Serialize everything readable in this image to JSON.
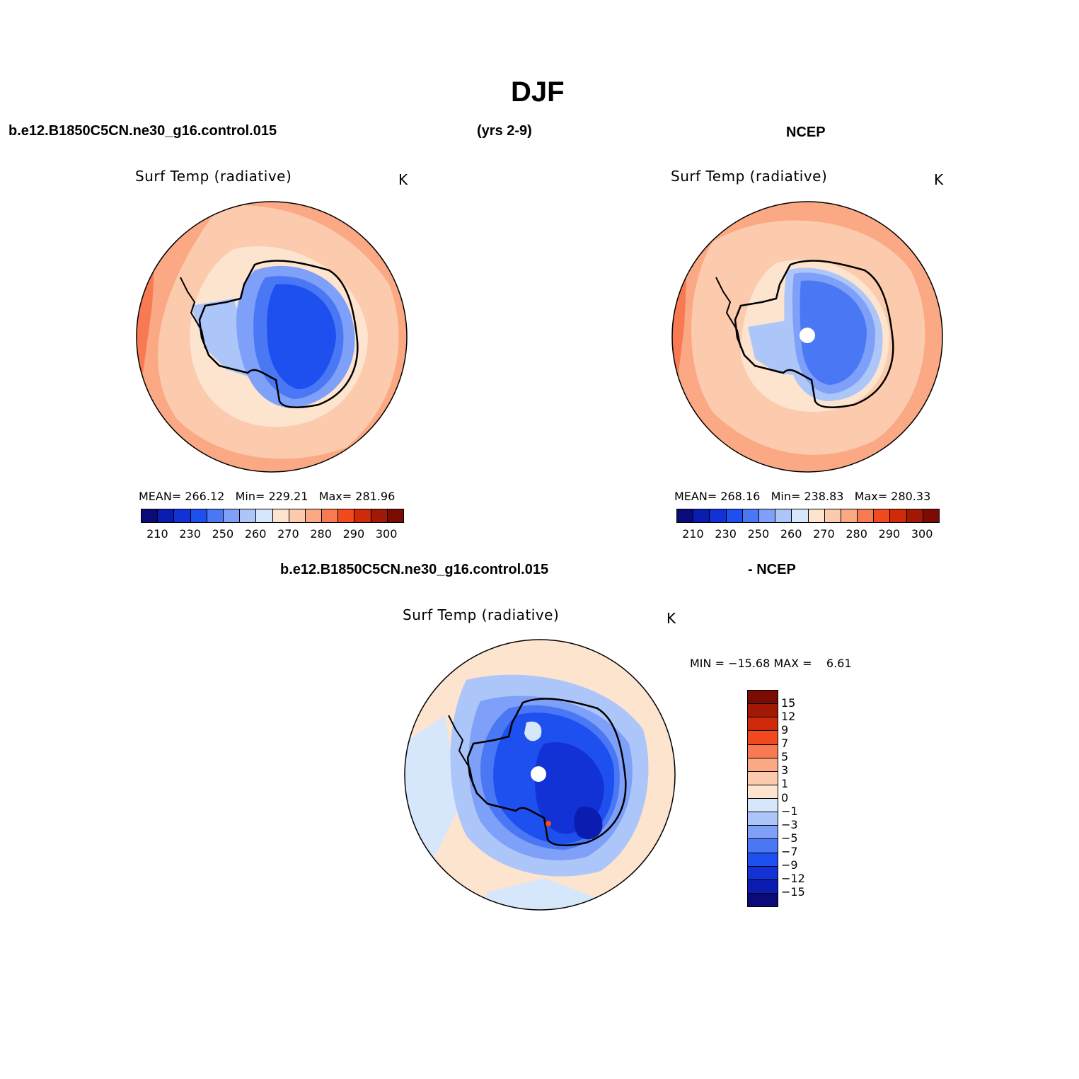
{
  "header": {
    "title": "DJF",
    "left_label": "b.e12.B1850C5CN.ne30_g16.control.015",
    "center_label": "(yrs 2-9)",
    "right_label": "NCEP",
    "diff_left_label": "b.e12.B1850C5CN.ne30_g16.control.015",
    "diff_right_label": "- NCEP"
  },
  "panels": {
    "model": {
      "title": "Surf Temp (radiative)",
      "units": "K",
      "stats": "MEAN= 266.12   Min= 229.21   Max= 281.96"
    },
    "obs": {
      "title": "Surf Temp (radiative)",
      "units": "K",
      "stats": "MEAN= 268.16   Min= 238.83   Max= 280.33"
    },
    "diff": {
      "title": "Surf Temp (radiative)",
      "units": "K",
      "stats": "MIN = −15.68 MAX =    6.61"
    }
  },
  "colorbar_abs": {
    "colors": [
      "#0a0a78",
      "#0b1cb0",
      "#1232d6",
      "#1e50f0",
      "#4a78f5",
      "#7fa0f8",
      "#adc6fa",
      "#d7e7fb",
      "#fde4cf",
      "#fccbad",
      "#fba884",
      "#f87a52",
      "#f04a1e",
      "#cf2a0a",
      "#a21a06",
      "#7a0c04"
    ],
    "ticks": [
      "210",
      "230",
      "250",
      "260",
      "270",
      "280",
      "290",
      "300"
    ]
  },
  "colorbar_diff": {
    "colors": [
      "#0a0a78",
      "#0b1cb0",
      "#1232d6",
      "#1e50f0",
      "#4a78f5",
      "#7fa0f8",
      "#adc6fa",
      "#d7e7fb",
      "#fde4cf",
      "#fccbad",
      "#fba884",
      "#f87a52",
      "#f04a1e",
      "#cf2a0a",
      "#a21a06",
      "#7a0c04"
    ],
    "ticks": [
      "15",
      "12",
      "9",
      "7",
      "5",
      "3",
      "1",
      "0",
      "−1",
      "−3",
      "−5",
      "−7",
      "−9",
      "−12",
      "−15"
    ]
  }
}
